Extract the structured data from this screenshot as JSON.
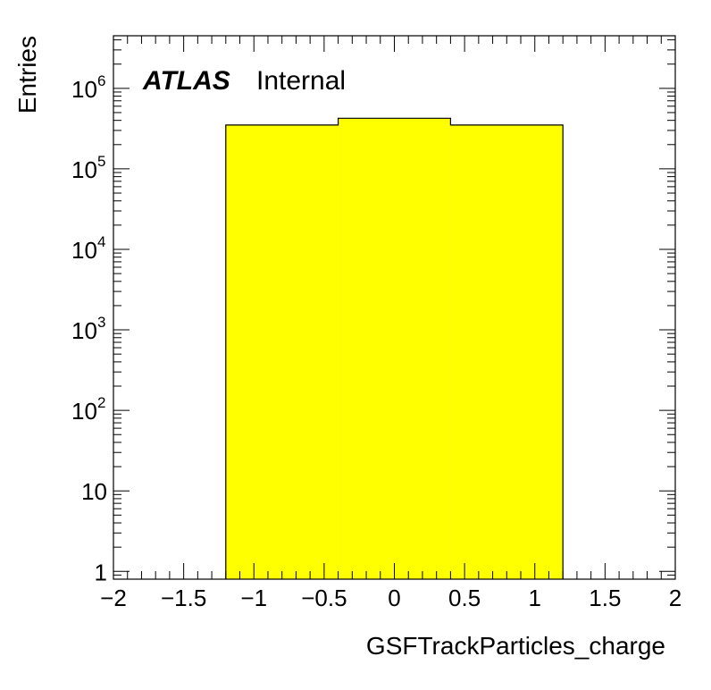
{
  "chart_data": {
    "type": "bar",
    "histogram": true,
    "xlabel": "GSFTrackParticles_charge",
    "ylabel": "Entries",
    "xlim": [
      -2,
      2
    ],
    "ylim": [
      0.8,
      4500000
    ],
    "yscale": "log",
    "grid": false,
    "x_ticks": [
      -2,
      -1.5,
      -1,
      -0.5,
      0,
      0.5,
      1,
      1.5,
      2
    ],
    "x_tick_labels": [
      "−2",
      "−1.5",
      "−1",
      "−0.5",
      "0",
      "0.5",
      "1",
      "1.5",
      "2"
    ],
    "y_ticks": [
      1,
      10,
      100,
      1000,
      10000,
      100000,
      1000000
    ],
    "y_tick_labels": [
      {
        "base": "1",
        "exp": ""
      },
      {
        "base": "10",
        "exp": ""
      },
      {
        "base": "10",
        "exp": "2"
      },
      {
        "base": "10",
        "exp": "3"
      },
      {
        "base": "10",
        "exp": "4"
      },
      {
        "base": "10",
        "exp": "5"
      },
      {
        "base": "10",
        "exp": "6"
      }
    ],
    "bins": [
      {
        "low": -1.2,
        "high": -0.4,
        "value": 350000
      },
      {
        "low": -0.4,
        "high": 0.4,
        "value": 425000
      },
      {
        "low": 0.4,
        "high": 1.2,
        "value": 350000
      }
    ],
    "fill_color": "#ffff00",
    "line_color": "#000000",
    "annotation": {
      "bold": "ATLAS",
      "normal": "Internal"
    }
  }
}
